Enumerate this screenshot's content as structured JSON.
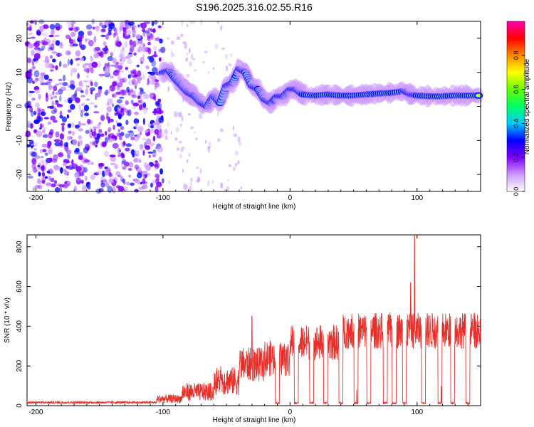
{
  "figure": {
    "title": "S196.2025.316.02.55.R16"
  },
  "chart_data": [
    {
      "type": "heatmap",
      "title": "S196.2025.316.02.55.R16",
      "xlabel": "Height of straight line (km)",
      "ylabel": "Frequency (Hz)",
      "xlim": [
        -207,
        150
      ],
      "ylim": [
        -25,
        25
      ],
      "xticks": [
        -200,
        -100,
        0,
        100
      ],
      "yticks": [
        -20,
        -10,
        0,
        10,
        20
      ],
      "colorbar": {
        "label": "Normalized spectral amplitude",
        "range": [
          0,
          1
        ],
        "ticks": [
          "0.0",
          "0.2",
          "0.4",
          "0.6",
          "0.8"
        ],
        "tick_values": [
          0.0,
          0.2,
          0.4,
          0.6,
          0.8
        ],
        "colormap": [
          "#ffffff",
          "#cc99ff",
          "#7f00ff",
          "#0000ff",
          "#00ccff",
          "#00ff66",
          "#66ff00",
          "#ffff00",
          "#ff8800",
          "#ff0000",
          "#ff00aa"
        ]
      },
      "ridge": {
        "x": [
          -100,
          -95,
          -90,
          -85,
          -80,
          -75,
          -70,
          -65,
          -60,
          -55,
          -50,
          -45,
          -40,
          -35,
          -30,
          -25,
          -20,
          -15,
          -10,
          -5,
          0,
          5,
          10,
          20,
          30,
          40,
          50,
          60,
          70,
          80,
          90,
          95,
          100,
          110,
          120,
          130,
          140,
          150
        ],
        "freq": [
          10,
          10.5,
          8,
          6,
          4,
          3,
          1,
          0,
          3,
          1,
          6,
          7,
          11,
          10,
          6,
          5,
          2,
          1,
          3,
          3,
          5,
          5,
          3.5,
          3.2,
          3.5,
          3.2,
          3.2,
          3.5,
          3.8,
          4,
          4.5,
          3.5,
          3.2,
          3,
          3,
          3.2,
          3.2,
          3.2
        ],
        "amp": [
          0.3,
          0.35,
          0.3,
          0.3,
          0.35,
          0.25,
          0.3,
          0.25,
          0.3,
          0.25,
          0.3,
          0.35,
          0.3,
          0.3,
          0.3,
          0.35,
          0.3,
          0.5,
          0.4,
          0.4,
          0.45,
          0.4,
          0.6,
          0.8,
          0.75,
          0.85,
          0.7,
          0.8,
          0.85,
          0.8,
          0.5,
          0.45,
          0.7,
          0.8,
          0.85,
          0.8,
          0.8,
          0.7
        ]
      },
      "noise_region": {
        "x_from": -207,
        "x_to": -100
      }
    },
    {
      "type": "line",
      "xlabel": "Height of straight line (km)",
      "ylabel": "SNR (10 * v/v)",
      "xlim": [
        -207,
        150
      ],
      "ylim": [
        0,
        860
      ],
      "xticks": [
        -200,
        -100,
        0,
        100
      ],
      "yticks": [
        0,
        200,
        400,
        600,
        800
      ],
      "line_color": "#e8302a",
      "segments": [
        {
          "x_from": -207,
          "x_to": -105,
          "level": 15,
          "noise": 12
        },
        {
          "x_from": -105,
          "x_to": -85,
          "level": 30,
          "noise": 40
        },
        {
          "x_from": -85,
          "x_to": -60,
          "level": 60,
          "noise": 90
        },
        {
          "x_from": -60,
          "x_to": -40,
          "level": 110,
          "noise": 140
        },
        {
          "x_from": -40,
          "x_to": -20,
          "level": 190,
          "noise": 170
        },
        {
          "x_from": -20,
          "x_to": 0,
          "level": 220,
          "noise": 180
        },
        {
          "x_from": 0,
          "x_to": 40,
          "level": 300,
          "noise": 180
        },
        {
          "x_from": 40,
          "x_to": 150,
          "level": 360,
          "noise": 180
        }
      ],
      "dropouts": [
        -10,
        5,
        17,
        28,
        40,
        52,
        62,
        75,
        82,
        90,
        105,
        118,
        128,
        140
      ],
      "peaks": [
        {
          "x": 98,
          "y": 860
        },
        {
          "x": 95,
          "y": 620
        },
        {
          "x": -30,
          "y": 450
        },
        {
          "x": -82,
          "y": 90
        }
      ]
    }
  ]
}
